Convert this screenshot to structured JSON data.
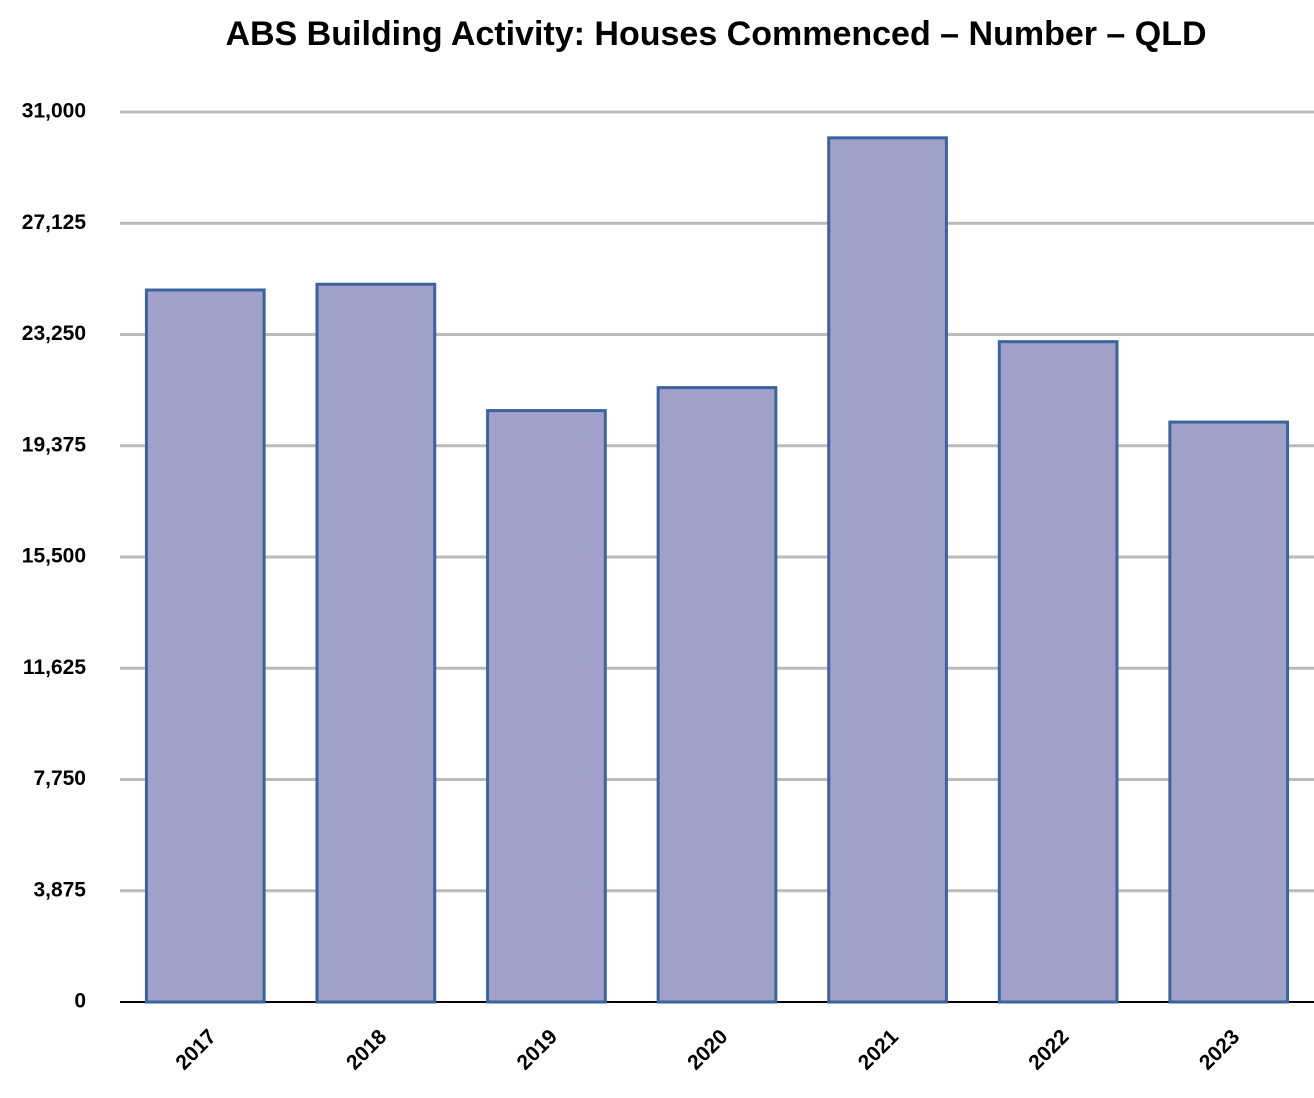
{
  "chart_data": {
    "type": "bar",
    "title": "ABS Building Activity: Houses Commenced – Number – QLD",
    "categories": [
      "2017",
      "2018",
      "2019",
      "2020",
      "2021",
      "2022",
      "2023"
    ],
    "values": [
      24800,
      25000,
      20600,
      21400,
      30100,
      23000,
      20200
    ],
    "color": "#a0a0c8",
    "edge_color": "#3b63a0",
    "ylim": [
      0,
      31000
    ],
    "yticks": [
      0,
      {
        "value": 3875,
        "label": "3,875"
      },
      {
        "value": 7750,
        "label": "7,750"
      },
      {
        "value": 11625,
        "label": "11,625"
      },
      {
        "value": 15500,
        "label": "15,500"
      },
      {
        "value": 19375,
        "label": "19,375"
      },
      {
        "value": 23250,
        "label": "23,250"
      },
      {
        "value": 27125,
        "label": "27,125"
      },
      {
        "value": 31000,
        "label": "31,000"
      }
    ],
    "grid": true
  }
}
